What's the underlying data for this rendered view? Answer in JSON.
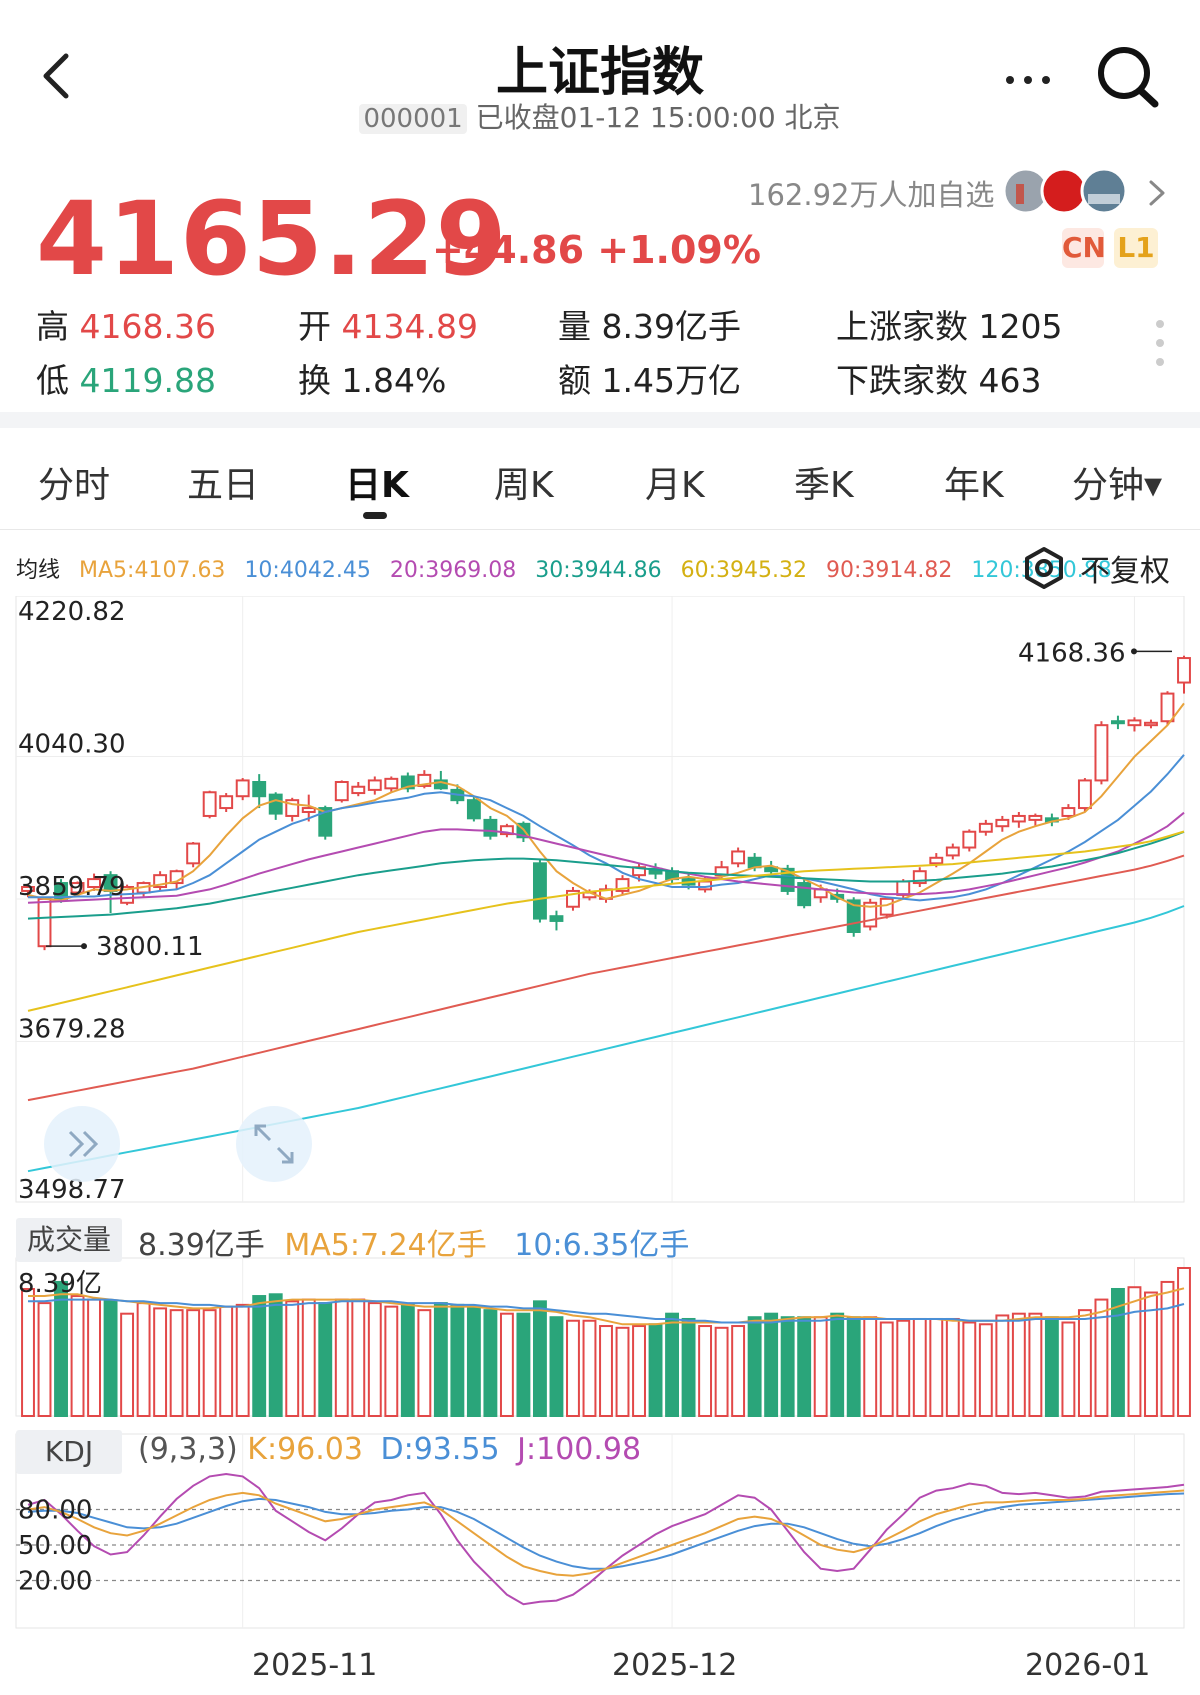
{
  "header": {
    "title": "上证指数",
    "code": "000001",
    "status_line": "已收盘01-12 15:00:00 北京",
    "back_icon": "chevron-left-icon",
    "more_icon": "more-dots-icon",
    "search_icon": "search-icon"
  },
  "quote": {
    "price": "4165.29",
    "change": "+44.86 +1.09%",
    "followers": "162.92万人加自选",
    "badge_cn": "CN",
    "badge_l1": "L1",
    "up_color": "#e24848",
    "down_color": "#2aa57a"
  },
  "stats": {
    "high_label": "高",
    "high": "4168.36",
    "low_label": "低",
    "low": "4119.88",
    "open_label": "开",
    "open": "4134.89",
    "turnover_label": "换",
    "turnover": "1.84%",
    "volume_label": "量",
    "volume": "8.39亿手",
    "amount_label": "额",
    "amount": "1.45万亿",
    "rise_label": "上涨家数",
    "rise": "1205",
    "fall_label": "下跌家数",
    "fall": "463"
  },
  "tabs": [
    {
      "label": "分时"
    },
    {
      "label": "五日"
    },
    {
      "label": "日K"
    },
    {
      "label": "周K"
    },
    {
      "label": "月K"
    },
    {
      "label": "季K"
    },
    {
      "label": "年K"
    },
    {
      "label": "分钟▾"
    }
  ],
  "ma": {
    "label": "均线",
    "items": [
      {
        "text": "MA5:4107.63",
        "color": "#e8a33c"
      },
      {
        "text": "10:4042.45",
        "color": "#4a8fd6"
      },
      {
        "text": "20:3969.08",
        "color": "#b44bb1"
      },
      {
        "text": "30:3944.86",
        "color": "#1a9e8c"
      },
      {
        "text": "60:3945.32",
        "color": "#e6c21c"
      },
      {
        "text": "90:3914.82",
        "color": "#e05b52"
      },
      {
        "text": "120:3850.88",
        "color": "#33c7d8"
      }
    ],
    "adjust_label": "不复权"
  },
  "chart_data": {
    "type": "candlestick",
    "y_ticks": [
      "4220.82",
      "4040.30",
      "3859.79",
      "3679.28",
      "3498.77"
    ],
    "ylim": [
      3498.77,
      4220.82
    ],
    "max_label": "4168.36",
    "min_label": "3800.11",
    "x_ticks": [
      "2025-11",
      "2025-12",
      "2026-01"
    ],
    "candles": [
      [
        3870,
        3875,
        3862,
        3878
      ],
      [
        3800,
        3860,
        3795,
        3862
      ],
      [
        3880,
        3860,
        3855,
        3885
      ],
      [
        3868,
        3880,
        3862,
        3882
      ],
      [
        3875,
        3885,
        3870,
        3892
      ],
      [
        3890,
        3870,
        3842,
        3895
      ],
      [
        3855,
        3875,
        3852,
        3878
      ],
      [
        3868,
        3880,
        3863,
        3882
      ],
      [
        3875,
        3890,
        3870,
        3895
      ],
      [
        3880,
        3895,
        3872,
        3897
      ],
      [
        3905,
        3930,
        3900,
        3932
      ],
      [
        3965,
        3995,
        3962,
        3997
      ],
      [
        3975,
        3990,
        3970,
        3994
      ],
      [
        3990,
        4010,
        3985,
        4013
      ],
      [
        4008,
        3990,
        3975,
        4018
      ],
      [
        3992,
        3968,
        3960,
        3995
      ],
      [
        3965,
        3985,
        3958,
        3988
      ],
      [
        3970,
        3975,
        3958,
        3992
      ],
      [
        3975,
        3940,
        3935,
        3978
      ],
      [
        3985,
        4008,
        3982,
        4010
      ],
      [
        3994,
        4002,
        3990,
        4008
      ],
      [
        3998,
        4010,
        3992,
        4015
      ],
      [
        4000,
        4012,
        3995,
        4015
      ],
      [
        4015,
        4000,
        3995,
        4020
      ],
      [
        4003,
        4017,
        4000,
        4023
      ],
      [
        4010,
        4000,
        3998,
        4022
      ],
      [
        3998,
        3985,
        3980,
        4005
      ],
      [
        3985,
        3962,
        3958,
        3990
      ],
      [
        3960,
        3940,
        3935,
        3965
      ],
      [
        3942,
        3952,
        3938,
        3955
      ],
      [
        3955,
        3938,
        3932,
        3958
      ],
      [
        3905,
        3835,
        3830,
        3910
      ],
      [
        3838,
        3832,
        3820,
        3845
      ],
      [
        3850,
        3870,
        3845,
        3875
      ],
      [
        3862,
        3868,
        3858,
        3872
      ],
      [
        3860,
        3872,
        3855,
        3878
      ],
      [
        3870,
        3885,
        3865,
        3890
      ],
      [
        3890,
        3900,
        3882,
        3905
      ],
      [
        3898,
        3892,
        3885,
        3905
      ],
      [
        3895,
        3885,
        3880,
        3900
      ],
      [
        3885,
        3878,
        3872,
        3893
      ],
      [
        3872,
        3882,
        3868,
        3887
      ],
      [
        3890,
        3900,
        3885,
        3908
      ],
      [
        3905,
        3920,
        3900,
        3925
      ],
      [
        3912,
        3900,
        3895,
        3918
      ],
      [
        3900,
        3895,
        3890,
        3908
      ],
      [
        3898,
        3870,
        3865,
        3903
      ],
      [
        3880,
        3852,
        3848,
        3886
      ],
      [
        3862,
        3872,
        3855,
        3878
      ],
      [
        3865,
        3860,
        3855,
        3873
      ],
      [
        3858,
        3818,
        3812,
        3862
      ],
      [
        3825,
        3855,
        3820,
        3860
      ],
      [
        3840,
        3860,
        3835,
        3862
      ],
      [
        3865,
        3882,
        3860,
        3885
      ],
      [
        3880,
        3895,
        3875,
        3900
      ],
      [
        3905,
        3912,
        3900,
        3918
      ],
      [
        3915,
        3925,
        3910,
        3930
      ],
      [
        3925,
        3945,
        3920,
        3948
      ],
      [
        3945,
        3955,
        3940,
        3960
      ],
      [
        3952,
        3960,
        3945,
        3965
      ],
      [
        3958,
        3965,
        3950,
        3970
      ],
      [
        3960,
        3965,
        3952,
        3968
      ],
      [
        3962,
        3958,
        3952,
        3968
      ],
      [
        3965,
        3975,
        3960,
        3980
      ],
      [
        3975,
        4010,
        3970,
        4013
      ],
      [
        4010,
        4080,
        4005,
        4085
      ],
      [
        4085,
        4083,
        4075,
        4092
      ],
      [
        4080,
        4086,
        4072,
        4090
      ],
      [
        4080,
        4083,
        4076,
        4087
      ],
      [
        4085,
        4120,
        4080,
        4123
      ],
      [
        4134,
        4165,
        4120,
        4168
      ]
    ],
    "ma_values": {
      "MA5": [
        3865,
        3860,
        3858,
        3865,
        3872,
        3870,
        3872,
        3875,
        3878,
        3882,
        3895,
        3915,
        3940,
        3962,
        3978,
        3985,
        3980,
        3978,
        3970,
        3975,
        3980,
        3985,
        3995,
        4002,
        4005,
        4008,
        4003,
        3990,
        3975,
        3965,
        3948,
        3920,
        3895,
        3880,
        3868,
        3860,
        3865,
        3870,
        3878,
        3885,
        3888,
        3885,
        3888,
        3893,
        3900,
        3902,
        3895,
        3885,
        3875,
        3862,
        3852,
        3850,
        3852,
        3860,
        3868,
        3880,
        3892,
        3905,
        3920,
        3935,
        3945,
        3952,
        3958,
        3962,
        3970,
        3990,
        4015,
        4040,
        4060,
        4080,
        4107.63
      ],
      "MA10": [
        3862,
        3862,
        3862,
        3863,
        3863,
        3865,
        3866,
        3867,
        3870,
        3872,
        3880,
        3890,
        3905,
        3920,
        3935,
        3945,
        3955,
        3962,
        3970,
        3975,
        3978,
        3982,
        3985,
        3988,
        3993,
        3995,
        3992,
        3990,
        3985,
        3975,
        3965,
        3952,
        3940,
        3928,
        3915,
        3905,
        3893,
        3885,
        3880,
        3875,
        3875,
        3875,
        3878,
        3880,
        3885,
        3890,
        3888,
        3886,
        3882,
        3877,
        3872,
        3866,
        3862,
        3860,
        3858,
        3860,
        3862,
        3866,
        3872,
        3880,
        3890,
        3900,
        3910,
        3920,
        3932,
        3946,
        3960,
        3978,
        3996,
        4018,
        4042.45
      ],
      "MA20": [
        3855,
        3856,
        3857,
        3858,
        3859,
        3860,
        3861,
        3862,
        3863,
        3864,
        3868,
        3872,
        3878,
        3885,
        3892,
        3898,
        3904,
        3910,
        3915,
        3920,
        3925,
        3930,
        3935,
        3940,
        3945,
        3948,
        3948,
        3947,
        3946,
        3944,
        3940,
        3935,
        3930,
        3925,
        3920,
        3915,
        3910,
        3905,
        3900,
        3895,
        3892,
        3888,
        3885,
        3882,
        3880,
        3878,
        3876,
        3874,
        3872,
        3870,
        3868,
        3867,
        3866,
        3866,
        3866,
        3867,
        3869,
        3872,
        3876,
        3880,
        3885,
        3890,
        3895,
        3900,
        3906,
        3913,
        3920,
        3930,
        3940,
        3952,
        3969.08
      ],
      "MA30": [
        3835,
        3836,
        3837,
        3838,
        3839,
        3840,
        3842,
        3844,
        3846,
        3848,
        3851,
        3854,
        3858,
        3862,
        3866,
        3870,
        3874,
        3878,
        3882,
        3886,
        3890,
        3893,
        3896,
        3899,
        3902,
        3905,
        3907,
        3909,
        3910,
        3911,
        3911,
        3910,
        3909,
        3907,
        3905,
        3903,
        3901,
        3899,
        3897,
        3895,
        3893,
        3892,
        3891,
        3890,
        3889,
        3888,
        3887,
        3886,
        3885,
        3884,
        3883,
        3882,
        3882,
        3882,
        3883,
        3884,
        3886,
        3888,
        3890,
        3892,
        3895,
        3898,
        3901,
        3905,
        3909,
        3913,
        3918,
        3924,
        3930,
        3937,
        3944.86
      ],
      "MA60": [
        3718,
        3723,
        3728,
        3733,
        3738,
        3743,
        3748,
        3753,
        3758,
        3763,
        3768,
        3773,
        3778,
        3783,
        3788,
        3793,
        3798,
        3803,
        3808,
        3813,
        3818,
        3822,
        3826,
        3830,
        3834,
        3838,
        3842,
        3846,
        3850,
        3854,
        3857,
        3860,
        3863,
        3866,
        3869,
        3871,
        3873,
        3875,
        3877,
        3879,
        3881,
        3883,
        3885,
        3887,
        3889,
        3891,
        3893,
        3895,
        3896,
        3897,
        3898,
        3899,
        3900,
        3901,
        3902,
        3903,
        3904,
        3906,
        3908,
        3910,
        3912,
        3914,
        3916,
        3918,
        3920,
        3923,
        3926,
        3929,
        3933,
        3939,
        3945.32
      ],
      "MA90": [
        3605,
        3609,
        3613,
        3617,
        3621,
        3625,
        3629,
        3633,
        3637,
        3641,
        3645,
        3650,
        3655,
        3660,
        3665,
        3670,
        3675,
        3680,
        3685,
        3690,
        3695,
        3700,
        3705,
        3710,
        3715,
        3720,
        3725,
        3730,
        3735,
        3740,
        3745,
        3750,
        3755,
        3760,
        3765,
        3769,
        3773,
        3777,
        3781,
        3785,
        3789,
        3793,
        3797,
        3801,
        3805,
        3809,
        3813,
        3817,
        3821,
        3825,
        3829,
        3833,
        3837,
        3841,
        3845,
        3849,
        3853,
        3857,
        3861,
        3865,
        3869,
        3873,
        3877,
        3881,
        3885,
        3889,
        3893,
        3897,
        3902,
        3908,
        3914.82
      ],
      "MA120": [
        3515,
        3519,
        3523,
        3527,
        3531,
        3535,
        3539,
        3543,
        3547,
        3551,
        3555,
        3559,
        3563,
        3567,
        3571,
        3575,
        3579,
        3583,
        3587,
        3591,
        3595,
        3600,
        3605,
        3610,
        3615,
        3620,
        3625,
        3630,
        3635,
        3640,
        3645,
        3650,
        3655,
        3660,
        3665,
        3670,
        3675,
        3680,
        3685,
        3690,
        3695,
        3700,
        3705,
        3710,
        3715,
        3720,
        3725,
        3730,
        3735,
        3740,
        3745,
        3750,
        3755,
        3760,
        3765,
        3770,
        3775,
        3780,
        3785,
        3790,
        3795,
        3800,
        3805,
        3810,
        3815,
        3820,
        3825,
        3830,
        3836,
        3843,
        3850.88
      ]
    }
  },
  "volume": {
    "label": "成交量",
    "current": "8.39亿手",
    "ma5": "MA5:7.24亿手",
    "ma10": "10:6.35亿手",
    "axis_top": "8.39亿",
    "bars": [
      7.2,
      6.4,
      7.6,
      6.8,
      6.6,
      6.5,
      5.8,
      6.4,
      6.1,
      6.0,
      6.0,
      6.0,
      6.2,
      6.3,
      6.8,
      6.9,
      6.5,
      6.6,
      6.4,
      6.6,
      6.6,
      6.4,
      6.2,
      6.3,
      6.0,
      6.4,
      6.3,
      6.2,
      6.0,
      5.8,
      5.8,
      6.5,
      5.6,
      5.4,
      5.4,
      5.1,
      5.0,
      5.1,
      5.2,
      5.8,
      5.5,
      5.1,
      5.0,
      5.1,
      5.6,
      5.8,
      5.6,
      5.6,
      5.6,
      5.8,
      5.6,
      5.6,
      5.3,
      5.4,
      5.5,
      5.5,
      5.5,
      5.3,
      5.2,
      5.7,
      5.8,
      5.8,
      5.6,
      5.3,
      6.0,
      6.6,
      7.2,
      7.3,
      7.0,
      7.6,
      8.39
    ],
    "ma5_line": [
      6.8,
      6.8,
      6.9,
      6.9,
      6.7,
      6.6,
      6.5,
      6.4,
      6.3,
      6.2,
      6.1,
      6.1,
      6.2,
      6.2,
      6.4,
      6.5,
      6.6,
      6.6,
      6.6,
      6.6,
      6.6,
      6.5,
      6.4,
      6.3,
      6.2,
      6.2,
      6.2,
      6.2,
      6.1,
      6.0,
      6.0,
      6.0,
      5.9,
      5.7,
      5.6,
      5.4,
      5.2,
      5.2,
      5.2,
      5.3,
      5.3,
      5.3,
      5.3,
      5.3,
      5.4,
      5.4,
      5.5,
      5.6,
      5.6,
      5.7,
      5.6,
      5.6,
      5.5,
      5.5,
      5.5,
      5.5,
      5.4,
      5.4,
      5.4,
      5.4,
      5.5,
      5.6,
      5.6,
      5.6,
      5.7,
      5.9,
      6.2,
      6.5,
      6.8,
      7.0,
      7.24
    ],
    "ma10_line": [
      6.5,
      6.5,
      6.6,
      6.6,
      6.6,
      6.6,
      6.5,
      6.5,
      6.4,
      6.4,
      6.3,
      6.3,
      6.2,
      6.2,
      6.2,
      6.3,
      6.3,
      6.4,
      6.4,
      6.5,
      6.5,
      6.5,
      6.5,
      6.4,
      6.4,
      6.4,
      6.3,
      6.3,
      6.2,
      6.2,
      6.1,
      6.1,
      6.0,
      5.9,
      5.8,
      5.8,
      5.7,
      5.6,
      5.5,
      5.5,
      5.4,
      5.4,
      5.3,
      5.3,
      5.3,
      5.3,
      5.4,
      5.4,
      5.4,
      5.5,
      5.5,
      5.5,
      5.5,
      5.5,
      5.5,
      5.5,
      5.5,
      5.4,
      5.4,
      5.4,
      5.4,
      5.5,
      5.5,
      5.5,
      5.5,
      5.6,
      5.7,
      5.9,
      6.0,
      6.1,
      6.35
    ]
  },
  "kdj": {
    "label": "KDJ",
    "params": "(9,3,3)",
    "k": "K:96.03",
    "d": "D:93.55",
    "j": "J:100.98",
    "axis_labels": [
      "80.00",
      "50.00",
      "20.00"
    ],
    "k_line": [
      80,
      82,
      78,
      72,
      65,
      60,
      58,
      62,
      68,
      75,
      82,
      88,
      92,
      94,
      92,
      85,
      80,
      75,
      70,
      72,
      76,
      80,
      82,
      84,
      86,
      80,
      70,
      60,
      50,
      40,
      32,
      28,
      25,
      24,
      26,
      30,
      35,
      40,
      45,
      50,
      55,
      60,
      66,
      72,
      74,
      72,
      66,
      58,
      50,
      46,
      44,
      48,
      55,
      62,
      70,
      76,
      80,
      84,
      86,
      86,
      87,
      88,
      88,
      88,
      89,
      91,
      92,
      93,
      94,
      95,
      96.03
    ],
    "d_line": [
      78,
      79,
      79,
      77,
      73,
      69,
      65,
      64,
      65,
      68,
      73,
      78,
      83,
      87,
      89,
      88,
      85,
      82,
      78,
      76,
      76,
      77,
      79,
      80,
      82,
      82,
      78,
      72,
      64,
      56,
      48,
      41,
      36,
      32,
      30,
      30,
      32,
      35,
      38,
      42,
      47,
      52,
      57,
      62,
      66,
      68,
      68,
      65,
      60,
      55,
      51,
      49,
      51,
      55,
      60,
      66,
      71,
      75,
      79,
      82,
      84,
      85,
      86,
      87,
      88,
      89,
      90,
      91,
      92,
      93,
      93.55
    ],
    "j_line": [
      84,
      88,
      76,
      62,
      49,
      42,
      44,
      58,
      74,
      89,
      100,
      108,
      110,
      108,
      98,
      79,
      70,
      61,
      54,
      64,
      76,
      86,
      88,
      92,
      94,
      76,
      54,
      36,
      22,
      8,
      0,
      2,
      3,
      8,
      18,
      30,
      41,
      50,
      59,
      66,
      71,
      76,
      84,
      92,
      90,
      80,
      62,
      44,
      30,
      28,
      30,
      46,
      63,
      76,
      90,
      96,
      98,
      102,
      100,
      94,
      93,
      94,
      92,
      90,
      91,
      95,
      96,
      97,
      98,
      99,
      100.98
    ]
  }
}
